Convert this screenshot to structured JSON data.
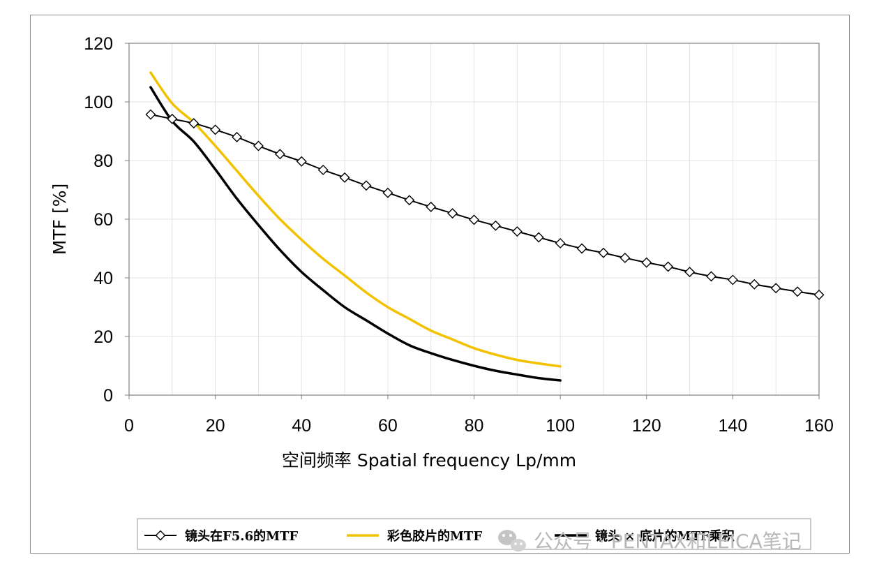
{
  "chart_data": {
    "type": "line",
    "xlabel": "空间频率  Spatial frequency  Lp/mm",
    "ylabel": "MTF  [%]",
    "xlim": [
      0,
      160
    ],
    "ylim": [
      0,
      120
    ],
    "xticks": [
      0,
      20,
      40,
      60,
      80,
      100,
      120,
      140,
      160
    ],
    "yticks": [
      0,
      20,
      40,
      60,
      80,
      100,
      120
    ],
    "grid": true,
    "legend_position": "bottom",
    "series": [
      {
        "name": "镜头在F5.6的MTF",
        "color": "#000000",
        "marker": "diamond",
        "x": [
          5,
          10,
          15,
          20,
          25,
          30,
          35,
          40,
          45,
          50,
          55,
          60,
          65,
          70,
          75,
          80,
          85,
          90,
          95,
          100,
          105,
          110,
          115,
          120,
          125,
          130,
          135,
          140,
          145,
          150,
          155,
          160
        ],
        "y": [
          95.7,
          94.2,
          92.7,
          90.5,
          88.0,
          85.0,
          82.2,
          79.7,
          76.8,
          74.2,
          71.5,
          69.0,
          66.5,
          64.2,
          62.0,
          59.8,
          57.8,
          55.8,
          53.8,
          51.8,
          50.0,
          48.5,
          46.8,
          45.2,
          43.8,
          42.0,
          40.5,
          39.3,
          37.8,
          36.5,
          35.3,
          34.2
        ]
      },
      {
        "name": "彩色胶片的MTF",
        "color": "#f2c200",
        "marker": "none",
        "x": [
          5,
          10,
          15,
          20,
          25,
          30,
          35,
          40,
          45,
          50,
          55,
          60,
          65,
          70,
          75,
          80,
          85,
          90,
          95,
          100
        ],
        "y": [
          110.0,
          99.5,
          93.0,
          85.0,
          76.5,
          68.0,
          60.0,
          53.0,
          46.5,
          40.8,
          35.0,
          30.0,
          26.0,
          22.0,
          19.0,
          16.0,
          13.8,
          12.0,
          10.8,
          9.8
        ]
      },
      {
        "name": "镜头 × 底片的MTF乘积",
        "color": "#000000",
        "marker": "none",
        "x": [
          5,
          10,
          15,
          20,
          25,
          30,
          35,
          40,
          45,
          50,
          55,
          60,
          65,
          70,
          75,
          80,
          85,
          90,
          95,
          100
        ],
        "y": [
          105.0,
          93.5,
          86.5,
          77.0,
          67.0,
          58.0,
          49.5,
          42.0,
          35.8,
          30.0,
          25.5,
          21.0,
          17.0,
          14.3,
          12.0,
          10.0,
          8.3,
          7.0,
          5.8,
          5.0
        ]
      }
    ]
  },
  "watermark": {
    "text": "公众号 · PENTAX和LEICA笔记",
    "icon": "wechat-icon"
  }
}
